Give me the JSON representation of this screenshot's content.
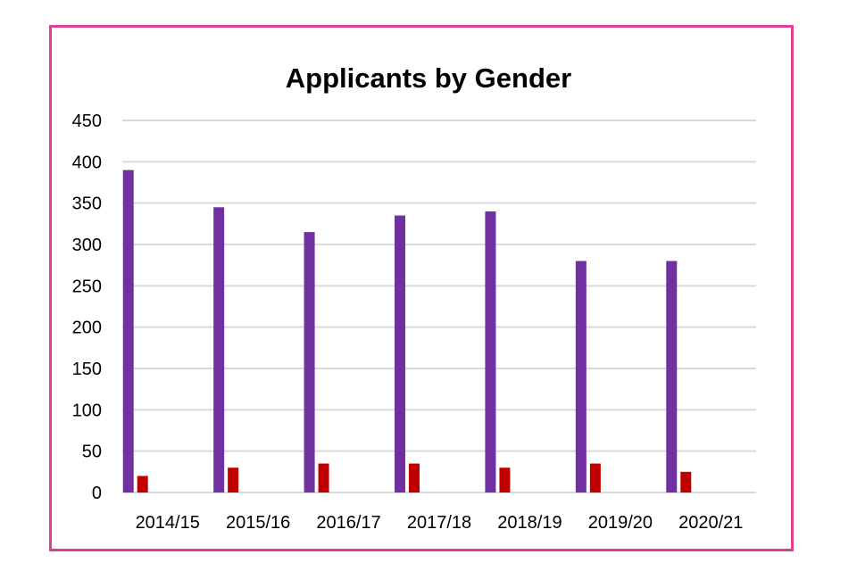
{
  "chart_data": {
    "type": "bar",
    "title": "Applicants by Gender",
    "xlabel": "",
    "ylabel": "",
    "categories": [
      "2014/15",
      "2015/16",
      "2016/17",
      "2017/18",
      "2018/19",
      "2019/20",
      "2020/21"
    ],
    "series": [
      {
        "values": [
          390,
          345,
          315,
          335,
          340,
          280,
          280
        ],
        "color": "#7030a0"
      },
      {
        "values": [
          20,
          30,
          35,
          35,
          30,
          35,
          25
        ],
        "color": "#c00000"
      }
    ],
    "ylim": [
      0,
      450
    ],
    "yticks": [
      "0",
      "50",
      "100",
      "150",
      "200",
      "250",
      "300",
      "350",
      "400",
      "450"
    ],
    "grid": true,
    "legend": "none"
  },
  "colors": {
    "frame": "#e0408f",
    "gridline": "#d9d9d9"
  }
}
